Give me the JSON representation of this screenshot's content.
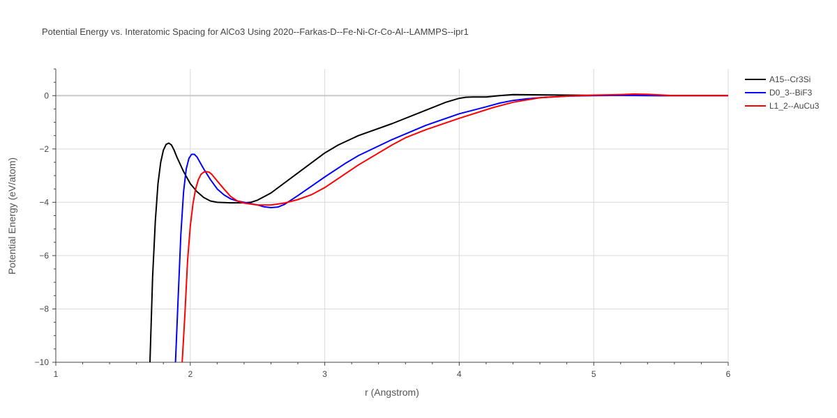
{
  "chart_data": {
    "type": "line",
    "title": "Potential Energy vs. Interatomic Spacing for AlCo3 Using 2020--Farkas-D--Fe-Ni-Cr-Co-Al--LAMMPS--ipr1",
    "xlabel": "r (Angstrom)",
    "ylabel": "Potential Energy (eV/atom)",
    "xlim": [
      1,
      6
    ],
    "ylim": [
      -10,
      1
    ],
    "x_ticks": [
      1,
      2,
      3,
      4,
      5,
      6
    ],
    "y_ticks": [
      -10,
      -8,
      -6,
      -4,
      -2,
      0
    ],
    "x_tick_labels": [
      "1",
      "2",
      "3",
      "4",
      "5",
      "6"
    ],
    "y_tick_labels": [
      "−10",
      "−8",
      "−6",
      "−4",
      "−2",
      "0"
    ],
    "grid": true,
    "legend_position": "top-right",
    "series": [
      {
        "name": "A15--Cr3Si",
        "color": "#000000",
        "x": [
          1.7,
          1.72,
          1.74,
          1.76,
          1.78,
          1.8,
          1.82,
          1.84,
          1.86,
          1.88,
          1.9,
          1.95,
          2.0,
          2.05,
          2.1,
          2.15,
          2.2,
          2.3,
          2.4,
          2.45,
          2.5,
          2.6,
          2.8,
          3.0,
          3.1,
          3.25,
          3.5,
          3.75,
          3.9,
          4.0,
          4.05,
          4.1,
          4.2,
          4.3,
          4.4,
          4.6,
          4.8,
          5.0,
          5.5,
          6.0
        ],
        "y": [
          -10.0,
          -6.8,
          -4.7,
          -3.3,
          -2.5,
          -2.05,
          -1.83,
          -1.78,
          -1.85,
          -2.05,
          -2.3,
          -2.85,
          -3.3,
          -3.6,
          -3.82,
          -3.95,
          -4.0,
          -4.02,
          -4.02,
          -4.0,
          -3.92,
          -3.65,
          -2.9,
          -2.15,
          -1.85,
          -1.5,
          -1.05,
          -0.55,
          -0.25,
          -0.1,
          -0.06,
          -0.05,
          -0.05,
          0.0,
          0.04,
          0.03,
          0.02,
          0.01,
          0.0,
          0.0
        ]
      },
      {
        "name": "D0_3--BiF3",
        "color": "#0000ff",
        "x": [
          1.89,
          1.91,
          1.93,
          1.95,
          1.97,
          1.99,
          2.01,
          2.03,
          2.05,
          2.07,
          2.1,
          2.15,
          2.2,
          2.25,
          2.3,
          2.35,
          2.4,
          2.5,
          2.55,
          2.6,
          2.65,
          2.7,
          2.8,
          3.0,
          3.15,
          3.25,
          3.5,
          3.75,
          4.0,
          4.2,
          4.3,
          4.4,
          4.5,
          4.6,
          4.8,
          5.0,
          5.2,
          5.5,
          6.0
        ],
        "y": [
          -10.0,
          -7.6,
          -5.2,
          -3.6,
          -2.75,
          -2.35,
          -2.2,
          -2.2,
          -2.3,
          -2.48,
          -2.75,
          -3.15,
          -3.5,
          -3.72,
          -3.87,
          -3.95,
          -4.0,
          -4.1,
          -4.17,
          -4.2,
          -4.18,
          -4.08,
          -3.75,
          -3.05,
          -2.55,
          -2.25,
          -1.65,
          -1.12,
          -0.68,
          -0.42,
          -0.28,
          -0.18,
          -0.12,
          -0.08,
          -0.02,
          0.0,
          0.01,
          0.0,
          0.0
        ]
      },
      {
        "name": "L1_2--AuCu3",
        "color": "#ff0000",
        "x": [
          1.94,
          1.96,
          1.98,
          2.0,
          2.02,
          2.04,
          2.06,
          2.08,
          2.1,
          2.12,
          2.14,
          2.16,
          2.2,
          2.25,
          2.3,
          2.35,
          2.4,
          2.5,
          2.6,
          2.7,
          2.8,
          2.9,
          3.0,
          3.25,
          3.5,
          3.6,
          3.75,
          4.0,
          4.25,
          4.4,
          4.6,
          4.8,
          5.0,
          5.2,
          5.3,
          5.4,
          5.6,
          6.0
        ],
        "y": [
          -10.0,
          -8.2,
          -6.2,
          -4.9,
          -4.05,
          -3.5,
          -3.15,
          -2.95,
          -2.87,
          -2.85,
          -2.87,
          -2.95,
          -3.2,
          -3.5,
          -3.78,
          -3.95,
          -4.03,
          -4.1,
          -4.1,
          -4.03,
          -3.9,
          -3.72,
          -3.45,
          -2.6,
          -1.85,
          -1.58,
          -1.28,
          -0.85,
          -0.45,
          -0.25,
          -0.08,
          -0.02,
          0.02,
          0.04,
          0.06,
          0.05,
          0.0,
          0.0
        ]
      }
    ]
  }
}
